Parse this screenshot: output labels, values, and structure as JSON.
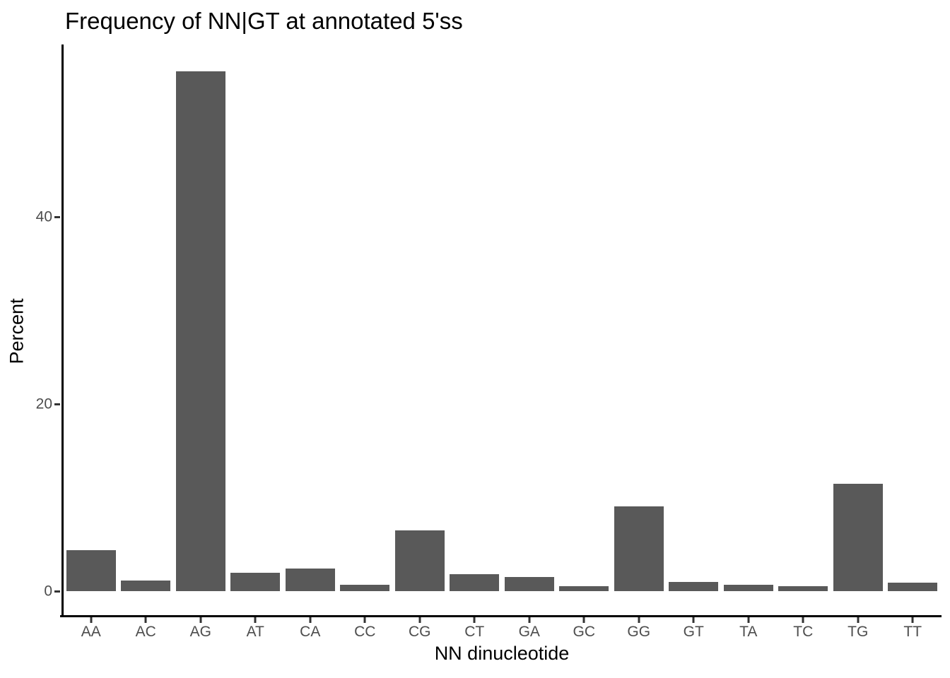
{
  "chart_data": {
    "type": "bar",
    "title": "Frequency of NN|GT at annotated 5'ss",
    "xlabel": "NN dinucleotide",
    "ylabel": "Percent",
    "categories": [
      "AA",
      "AC",
      "AG",
      "AT",
      "CA",
      "CC",
      "CG",
      "CT",
      "GA",
      "GC",
      "GG",
      "GT",
      "TA",
      "TC",
      "TG",
      "TT"
    ],
    "values": [
      4.4,
      1.1,
      55.6,
      2.0,
      2.4,
      0.7,
      6.5,
      1.8,
      1.5,
      0.5,
      9.1,
      1.0,
      0.7,
      0.5,
      11.5,
      0.9
    ],
    "yticks": [
      0,
      20,
      40
    ],
    "ylim": [
      0,
      58.3
    ],
    "grid": false,
    "legend_position": "none",
    "bar_color": "#595959",
    "axis_line_color": "#000000",
    "tick_mark_color": "#333333",
    "tick_label_color": "#4D4D4D",
    "title_color": "#000000"
  }
}
